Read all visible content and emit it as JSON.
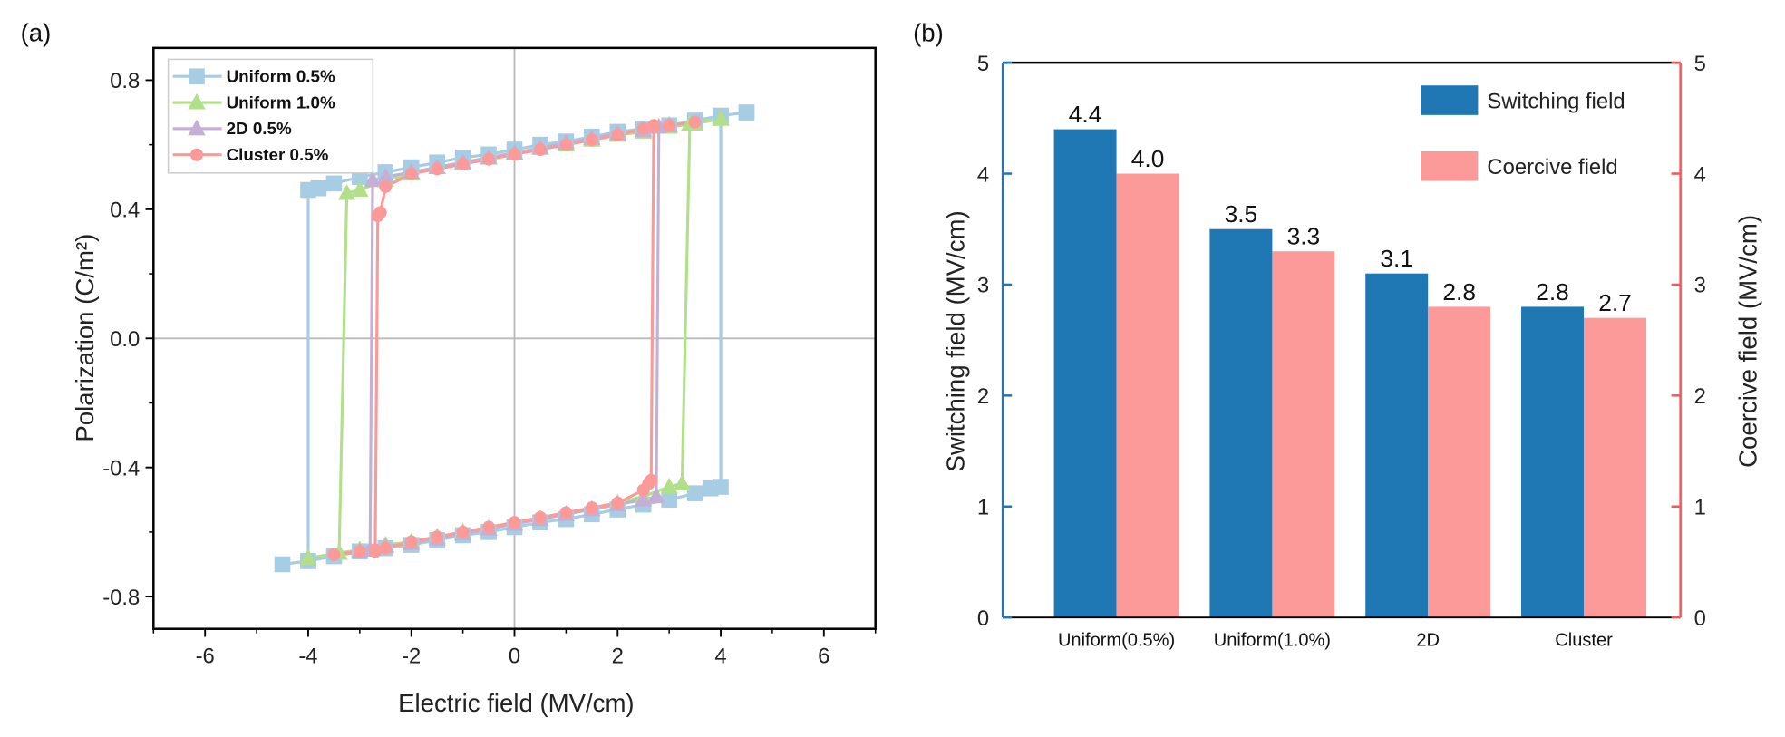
{
  "chart_data": [
    {
      "panel_label": "(a)",
      "type": "line",
      "xlabel": "Electric field (MV/cm)",
      "ylabel": "Polarization (C/m²)",
      "xlim": [
        -7,
        7
      ],
      "ylim": [
        -0.9,
        0.9
      ],
      "xticks": [
        -6,
        -4,
        -2,
        0,
        2,
        4,
        6
      ],
      "yticks": [
        -0.8,
        -0.4,
        0.0,
        0.4,
        0.8
      ],
      "ytick_labels": [
        "-0.8",
        "-0.4",
        "0.0",
        "0.4",
        "0.8"
      ],
      "zero_lines": true,
      "legend_placement": "top-left",
      "series": [
        {
          "name": "Uniform 0.5%",
          "marker": "square",
          "color": "#a6cde3",
          "points": [
            [
              4.5,
              0.7
            ],
            [
              4,
              0.69
            ],
            [
              3.5,
              0.675
            ],
            [
              3,
              0.66
            ],
            [
              2.5,
              0.65
            ],
            [
              2,
              0.64
            ],
            [
              1.5,
              0.625
            ],
            [
              1,
              0.61
            ],
            [
              0.5,
              0.6
            ],
            [
              0,
              0.585
            ],
            [
              -0.5,
              0.57
            ],
            [
              -1,
              0.56
            ],
            [
              -1.5,
              0.545
            ],
            [
              -2,
              0.53
            ],
            [
              -2.5,
              0.515
            ],
            [
              -3,
              0.5
            ],
            [
              -3.5,
              0.48
            ],
            [
              -3.8,
              0.465
            ],
            [
              -4,
              0.46
            ],
            [
              -4,
              -0.69
            ],
            [
              -4.5,
              -0.7
            ],
            [
              -4,
              -0.69
            ],
            [
              -3.5,
              -0.675
            ],
            [
              -3,
              -0.66
            ],
            [
              -2.5,
              -0.65
            ],
            [
              -2,
              -0.64
            ],
            [
              -1.5,
              -0.625
            ],
            [
              -1,
              -0.61
            ],
            [
              -0.5,
              -0.6
            ],
            [
              0,
              -0.585
            ],
            [
              0.5,
              -0.57
            ],
            [
              1,
              -0.56
            ],
            [
              1.5,
              -0.545
            ],
            [
              2,
              -0.53
            ],
            [
              2.5,
              -0.515
            ],
            [
              3,
              -0.5
            ],
            [
              3.5,
              -0.48
            ],
            [
              3.8,
              -0.465
            ],
            [
              4,
              -0.46
            ],
            [
              4,
              0.69
            ],
            [
              4.5,
              0.7
            ]
          ]
        },
        {
          "name": "Uniform 1.0%",
          "marker": "triangle",
          "color": "#b2df8a",
          "points": [
            [
              4,
              0.68
            ],
            [
              3.5,
              0.665
            ],
            [
              3,
              0.655
            ],
            [
              2.5,
              0.64
            ],
            [
              2,
              0.63
            ],
            [
              1.5,
              0.615
            ],
            [
              1,
              0.6
            ],
            [
              0.5,
              0.59
            ],
            [
              0,
              0.575
            ],
            [
              -0.5,
              0.56
            ],
            [
              -1,
              0.545
            ],
            [
              -1.5,
              0.53
            ],
            [
              -2,
              0.51
            ],
            [
              -2.5,
              0.49
            ],
            [
              -3,
              0.46
            ],
            [
              -3.25,
              0.45
            ],
            [
              -3.4,
              -0.665
            ],
            [
              -4,
              -0.68
            ],
            [
              -3.4,
              -0.665
            ],
            [
              -3,
              -0.655
            ],
            [
              -2.5,
              -0.64
            ],
            [
              -2,
              -0.63
            ],
            [
              -1.5,
              -0.615
            ],
            [
              -1,
              -0.6
            ],
            [
              -0.5,
              -0.59
            ],
            [
              0,
              -0.575
            ],
            [
              0.5,
              -0.56
            ],
            [
              1,
              -0.545
            ],
            [
              1.5,
              -0.53
            ],
            [
              2,
              -0.51
            ],
            [
              2.5,
              -0.49
            ],
            [
              3,
              -0.46
            ],
            [
              3.25,
              -0.45
            ],
            [
              3.4,
              0.665
            ],
            [
              4,
              0.68
            ]
          ]
        },
        {
          "name": "2D 0.5%",
          "marker": "triangle",
          "color": "#c5b0d5",
          "points": [
            [
              3,
              0.66
            ],
            [
              2.8,
              0.655
            ],
            [
              2.5,
              0.645
            ],
            [
              2,
              0.635
            ],
            [
              1.5,
              0.62
            ],
            [
              1,
              0.605
            ],
            [
              0.5,
              0.59
            ],
            [
              0,
              0.575
            ],
            [
              -0.5,
              0.56
            ],
            [
              -1,
              0.545
            ],
            [
              -1.5,
              0.53
            ],
            [
              -2,
              0.515
            ],
            [
              -2.5,
              0.5
            ],
            [
              -2.75,
              0.49
            ],
            [
              -2.8,
              -0.655
            ],
            [
              -3,
              -0.66
            ],
            [
              -2.8,
              -0.655
            ],
            [
              -2.5,
              -0.645
            ],
            [
              -2,
              -0.635
            ],
            [
              -1.5,
              -0.62
            ],
            [
              -1,
              -0.605
            ],
            [
              -0.5,
              -0.59
            ],
            [
              0,
              -0.575
            ],
            [
              0.5,
              -0.56
            ],
            [
              1,
              -0.545
            ],
            [
              1.5,
              -0.53
            ],
            [
              2,
              -0.515
            ],
            [
              2.5,
              -0.5
            ],
            [
              2.75,
              -0.49
            ],
            [
              2.8,
              0.655
            ],
            [
              3,
              0.66
            ]
          ]
        },
        {
          "name": "Cluster 0.5%",
          "marker": "circle",
          "color": "#fb9a99",
          "points": [
            [
              3.5,
              0.67
            ],
            [
              3,
              0.66
            ],
            [
              2.7,
              0.655
            ],
            [
              2.5,
              0.65
            ],
            [
              2,
              0.63
            ],
            [
              1.5,
              0.615
            ],
            [
              1,
              0.6
            ],
            [
              0.5,
              0.585
            ],
            [
              0,
              0.57
            ],
            [
              -0.5,
              0.555
            ],
            [
              -1,
              0.54
            ],
            [
              -1.5,
              0.525
            ],
            [
              -2,
              0.51
            ],
            [
              -2.5,
              0.47
            ],
            [
              -2.6,
              0.39
            ],
            [
              -2.65,
              0.38
            ],
            [
              -2.7,
              -0.66
            ],
            [
              -3.5,
              -0.67
            ],
            [
              -3,
              -0.66
            ],
            [
              -2.7,
              -0.655
            ],
            [
              -2.5,
              -0.65
            ],
            [
              -2,
              -0.63
            ],
            [
              -1.5,
              -0.615
            ],
            [
              -1,
              -0.6
            ],
            [
              -0.5,
              -0.585
            ],
            [
              0,
              -0.57
            ],
            [
              0.5,
              -0.555
            ],
            [
              1,
              -0.54
            ],
            [
              1.5,
              -0.525
            ],
            [
              2,
              -0.51
            ],
            [
              2.5,
              -0.47
            ],
            [
              2.6,
              -0.45
            ],
            [
              2.65,
              -0.44
            ],
            [
              2.7,
              0.66
            ],
            [
              3,
              0.66
            ],
            [
              3.5,
              0.67
            ]
          ]
        }
      ]
    },
    {
      "panel_label": "(b)",
      "type": "bar",
      "categories": [
        "Uniform(0.5%)",
        "Uniform(1.0%)",
        "2D",
        "Cluster"
      ],
      "ylabel": "Switching field (MV/cm)",
      "y2label": "Coercive field (MV/cm)",
      "ylim": [
        0,
        5
      ],
      "y2lim": [
        0,
        5
      ],
      "yticks": [
        0,
        1,
        2,
        3,
        4,
        5
      ],
      "legend_placement": "top-right",
      "left_axis_color": "#1f77b4",
      "right_axis_color": "#f0595a",
      "series": [
        {
          "name": "Switching field",
          "color": "#1f77b4",
          "axis": "left",
          "values": [
            4.4,
            3.5,
            3.1,
            2.8
          ],
          "labels": [
            "4.4",
            "3.5",
            "3.1",
            "2.8"
          ]
        },
        {
          "name": "Coercive field",
          "color": "#fb9a99",
          "axis": "right",
          "values": [
            4.0,
            3.3,
            2.8,
            2.7
          ],
          "labels": [
            "4.0",
            "3.3",
            "2.8",
            "2.7"
          ]
        }
      ]
    }
  ]
}
